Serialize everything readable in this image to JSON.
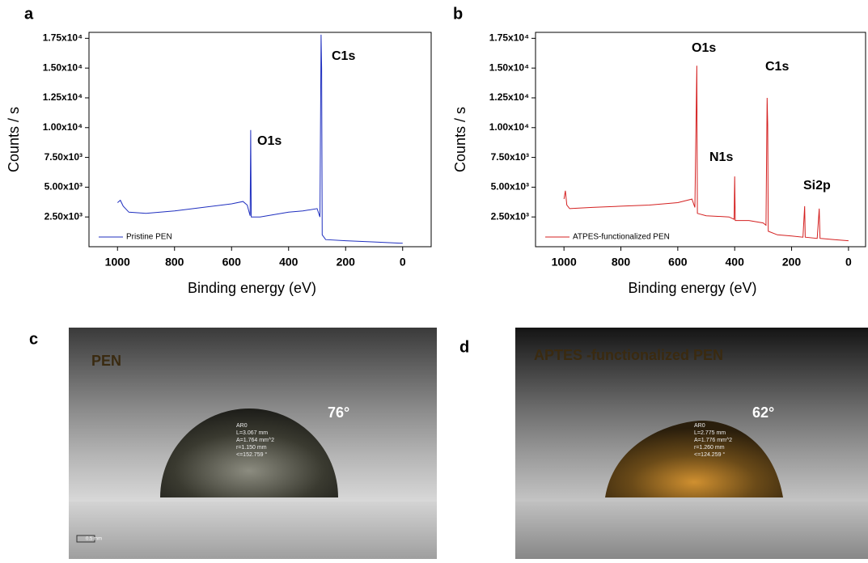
{
  "chart_data": [
    {
      "type": "line",
      "panel": "a",
      "xlabel": "Binding energy (eV)",
      "ylabel": "Counts / s",
      "xlim": [
        1100,
        -100
      ],
      "xticks": [
        1000,
        800,
        600,
        400,
        200,
        0
      ],
      "ylim": [
        0,
        18000
      ],
      "yticks": [
        {
          "value": 2500,
          "label": "2.50x10³"
        },
        {
          "value": 5000,
          "label": "5.00x10³"
        },
        {
          "value": 7500,
          "label": "7.50x10³"
        },
        {
          "value": 10000,
          "label": "1.00x10⁴"
        },
        {
          "value": 12500,
          "label": "1.25x10⁴"
        },
        {
          "value": 15000,
          "label": "1.50x10⁴"
        },
        {
          "value": 17500,
          "label": "1.75x10⁴"
        }
      ],
      "legend": "lower left",
      "x": [
        1000,
        990,
        980,
        960,
        900,
        850,
        800,
        700,
        600,
        560,
        545,
        535,
        533,
        531,
        500,
        450,
        400,
        350,
        300,
        290,
        286,
        284,
        282,
        270,
        200,
        100,
        10,
        0
      ],
      "series": [
        {
          "name": "Pristine PEN",
          "color": "#1f2fbf",
          "values": [
            3700,
            3900,
            3400,
            2900,
            2800,
            2900,
            3000,
            3300,
            3600,
            3800,
            3500,
            2600,
            9800,
            2500,
            2500,
            2700,
            2900,
            3000,
            3200,
            2500,
            17800,
            15000,
            1000,
            600,
            500,
            400,
            300,
            300
          ]
        }
      ],
      "annotations": [
        "O1s",
        "C1s"
      ]
    },
    {
      "type": "line",
      "panel": "b",
      "xlabel": "Binding energy (eV)",
      "ylabel": "Counts / s",
      "xlim": [
        1100,
        -60
      ],
      "xticks": [
        1000,
        800,
        600,
        400,
        200,
        0
      ],
      "ylim": [
        0,
        18000
      ],
      "yticks": [
        {
          "value": 2500,
          "label": "2.50x10³"
        },
        {
          "value": 5000,
          "label": "5.00x10³"
        },
        {
          "value": 7500,
          "label": "7.50x10³"
        },
        {
          "value": 10000,
          "label": "1.00x10⁴"
        },
        {
          "value": 12500,
          "label": "1.25x10⁴"
        },
        {
          "value": 15000,
          "label": "1.50x10⁴"
        },
        {
          "value": 17500,
          "label": "1.75x10⁴"
        }
      ],
      "legend": "lower left",
      "x": [
        1000,
        995,
        990,
        980,
        900,
        800,
        700,
        600,
        550,
        540,
        533,
        531,
        500,
        420,
        402,
        400,
        398,
        350,
        300,
        290,
        286,
        284,
        282,
        250,
        200,
        160,
        154,
        152,
        110,
        103,
        100,
        50,
        0
      ],
      "series": [
        {
          "name": "ATPES-functionalized PEN",
          "color": "#d42020",
          "values": [
            4000,
            4700,
            3500,
            3200,
            3300,
            3400,
            3500,
            3700,
            4000,
            3300,
            15200,
            2800,
            2600,
            2500,
            2300,
            5900,
            2200,
            2200,
            2000,
            1800,
            12500,
            10300,
            1300,
            1000,
            900,
            800,
            3400,
            800,
            700,
            3200,
            700,
            600,
            500
          ]
        }
      ],
      "annotations": [
        "O1s",
        "C1s",
        "N1s",
        "Si2p"
      ]
    }
  ],
  "photos": [
    {
      "panel": "c",
      "label": "PEN",
      "angle": "76°",
      "readout": [
        "AR0",
        "L=3.067 mm",
        "A=1.764 mm^2",
        "r=1.150 mm",
        "<=152.759 °"
      ],
      "scale": "0.5 mm"
    },
    {
      "panel": "d",
      "label": "APTES -functionalized PEN",
      "angle": "62°",
      "readout": [
        "AR0",
        "L=2.775 mm",
        "A=1.776 mm^2",
        "r=1.260 mm",
        "<=124.259 °"
      ]
    }
  ]
}
